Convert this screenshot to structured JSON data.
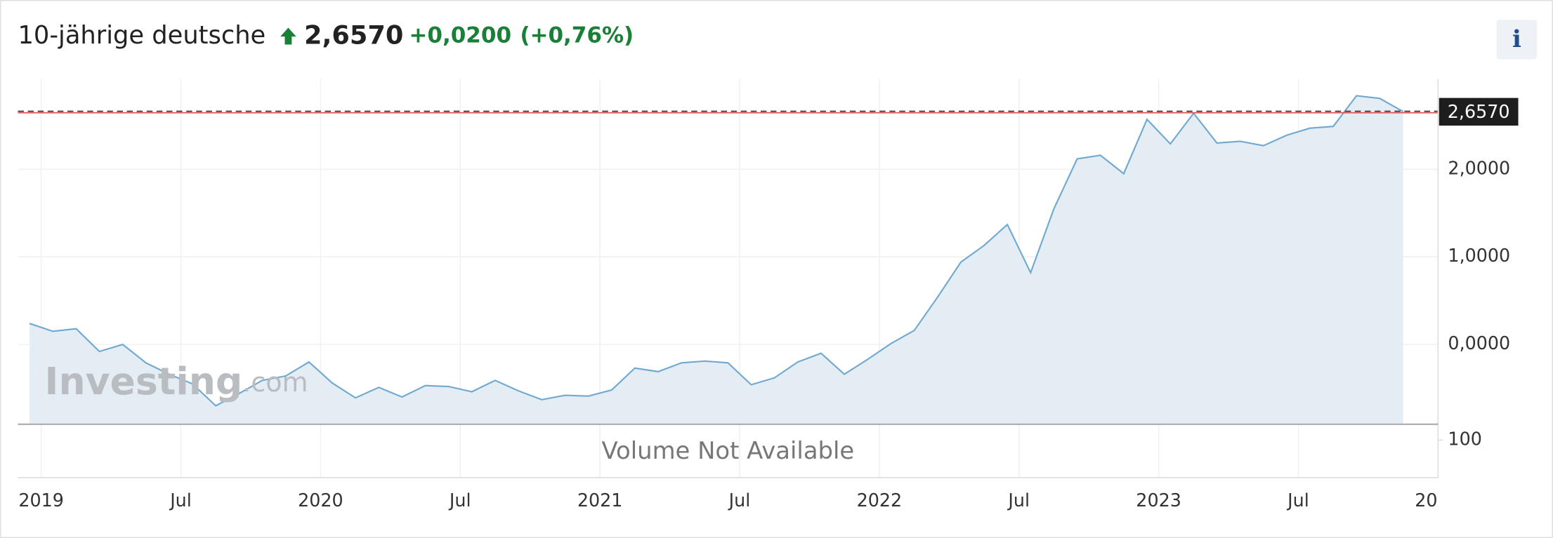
{
  "chart_data": {
    "type": "area",
    "title": "10-jährige deutsche",
    "price": {
      "value": 2.657,
      "label": "2,6570"
    },
    "change": "+0,0200",
    "change_percent": "(+0,76%)",
    "info": "i",
    "x": [
      "2018-12",
      "2019-01",
      "2019-02",
      "2019-03",
      "2019-04",
      "2019-05",
      "2019-06",
      "2019-07",
      "2019-08",
      "2019-09",
      "2019-10",
      "2019-11",
      "2019-12",
      "2020-01",
      "2020-02",
      "2020-03",
      "2020-04",
      "2020-05",
      "2020-06",
      "2020-07",
      "2020-08",
      "2020-09",
      "2020-10",
      "2020-11",
      "2020-12",
      "2021-01",
      "2021-02",
      "2021-03",
      "2021-04",
      "2021-05",
      "2021-06",
      "2021-07",
      "2021-08",
      "2021-09",
      "2021-10",
      "2021-11",
      "2021-12",
      "2022-01",
      "2022-02",
      "2022-03",
      "2022-04",
      "2022-05",
      "2022-06",
      "2022-07",
      "2022-08",
      "2022-09",
      "2022-10",
      "2022-11",
      "2022-12",
      "2023-01",
      "2023-02",
      "2023-03",
      "2023-04",
      "2023-05",
      "2023-06",
      "2023-07",
      "2023-08",
      "2023-09",
      "2023-10",
      "2023-11"
    ],
    "values": [
      0.24,
      0.15,
      0.18,
      -0.08,
      0.0,
      -0.21,
      -0.34,
      -0.45,
      -0.7,
      -0.56,
      -0.41,
      -0.36,
      -0.2,
      -0.44,
      -0.61,
      -0.49,
      -0.6,
      -0.47,
      -0.48,
      -0.54,
      -0.41,
      -0.53,
      -0.63,
      -0.58,
      -0.59,
      -0.52,
      -0.27,
      -0.31,
      -0.21,
      -0.19,
      -0.21,
      -0.46,
      -0.38,
      -0.2,
      -0.1,
      -0.34,
      -0.17,
      0.01,
      0.16,
      0.54,
      0.94,
      1.13,
      1.37,
      0.82,
      1.55,
      2.12,
      2.16,
      1.95,
      2.57,
      2.29,
      2.64,
      2.3,
      2.32,
      2.27,
      2.39,
      2.47,
      2.49,
      2.84,
      2.81,
      2.66
    ],
    "color": "#6fa8d0",
    "fill": "#e3ecf3",
    "price_line_color": "#e05555",
    "xlim": [
      "2018-12",
      "2024-01"
    ],
    "xticks": [
      {
        "value": "2019-01",
        "label": "2019"
      },
      {
        "value": "2019-07",
        "label": "Jul"
      },
      {
        "value": "2020-01",
        "label": "2020"
      },
      {
        "value": "2020-07",
        "label": "Jul"
      },
      {
        "value": "2021-01",
        "label": "2021"
      },
      {
        "value": "2021-07",
        "label": "Jul"
      },
      {
        "value": "2022-01",
        "label": "2022"
      },
      {
        "value": "2022-07",
        "label": "Jul"
      },
      {
        "value": "2023-01",
        "label": "2023"
      },
      {
        "value": "2023-07",
        "label": "Jul"
      },
      {
        "value": "2024-01",
        "label": "20"
      }
    ],
    "ylim": [
      -0.9,
      3.03
    ],
    "yticks": [
      {
        "value": 0,
        "label": "0,0000"
      },
      {
        "value": 1,
        "label": "1,0000"
      },
      {
        "value": 2,
        "label": "2,0000"
      }
    ],
    "grid": true,
    "volume": {
      "message": "Volume Not Available",
      "yticks": [
        100
      ]
    },
    "watermark": [
      "Investing",
      ".com"
    ]
  }
}
